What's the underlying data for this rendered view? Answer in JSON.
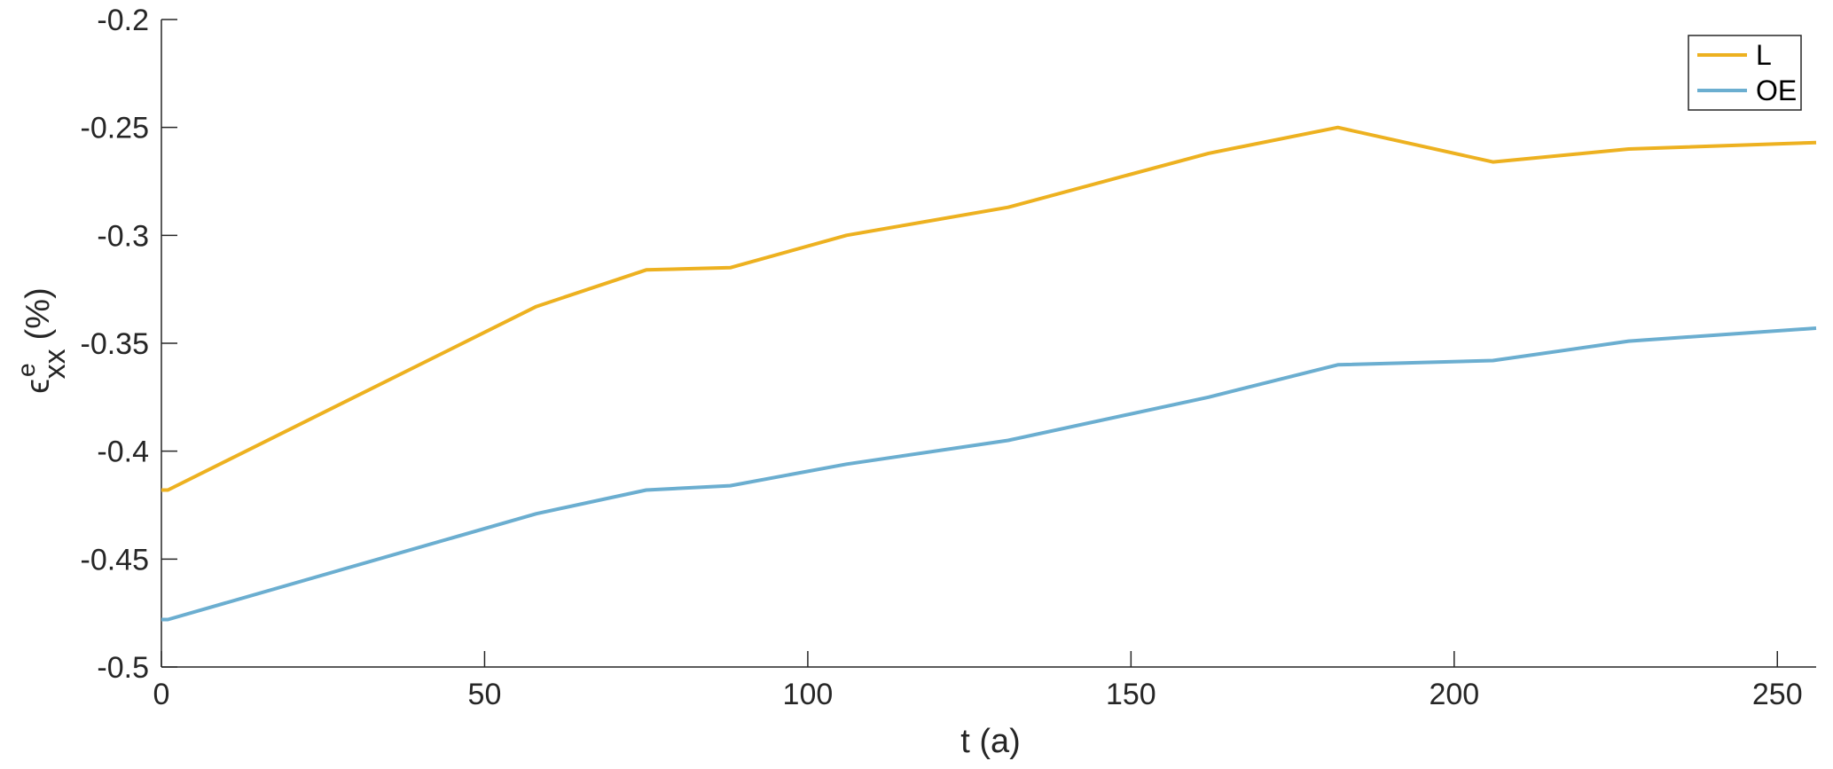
{
  "chart_data": {
    "type": "line",
    "xlabel": "t (a)",
    "ylabel": {
      "symbol": "ϵ",
      "superscript": "e",
      "subscript": "xx",
      "unit": "(%)"
    },
    "xlim": [
      0,
      256
    ],
    "ylim": [
      -0.5,
      -0.2
    ],
    "xticks": [
      0,
      50,
      100,
      150,
      200,
      250
    ],
    "xtick_labels": [
      "0",
      "50",
      "100",
      "150",
      "200",
      "250"
    ],
    "yticks": [
      -0.5,
      -0.45,
      -0.4,
      -0.35,
      -0.3,
      -0.25,
      -0.2
    ],
    "ytick_labels": [
      "-0.5",
      "-0.45",
      "-0.4",
      "-0.35",
      "-0.3",
      "-0.25",
      "-0.2"
    ],
    "grid": false,
    "legend_position": "top-right",
    "series": [
      {
        "name": "L",
        "color": "#EDB120",
        "x": [
          0,
          1,
          58,
          75,
          88,
          106,
          131,
          162,
          182,
          206,
          227,
          256
        ],
        "y": [
          -0.418,
          -0.418,
          -0.333,
          -0.316,
          -0.315,
          -0.3,
          -0.287,
          -0.262,
          -0.25,
          -0.266,
          -0.26,
          -0.257
        ]
      },
      {
        "name": "OE",
        "color": "#6BAED0",
        "x": [
          0,
          1,
          58,
          75,
          88,
          106,
          131,
          162,
          182,
          206,
          227,
          256
        ],
        "y": [
          -0.478,
          -0.478,
          -0.429,
          -0.418,
          -0.416,
          -0.406,
          -0.395,
          -0.375,
          -0.36,
          -0.358,
          -0.349,
          -0.343
        ]
      }
    ]
  }
}
